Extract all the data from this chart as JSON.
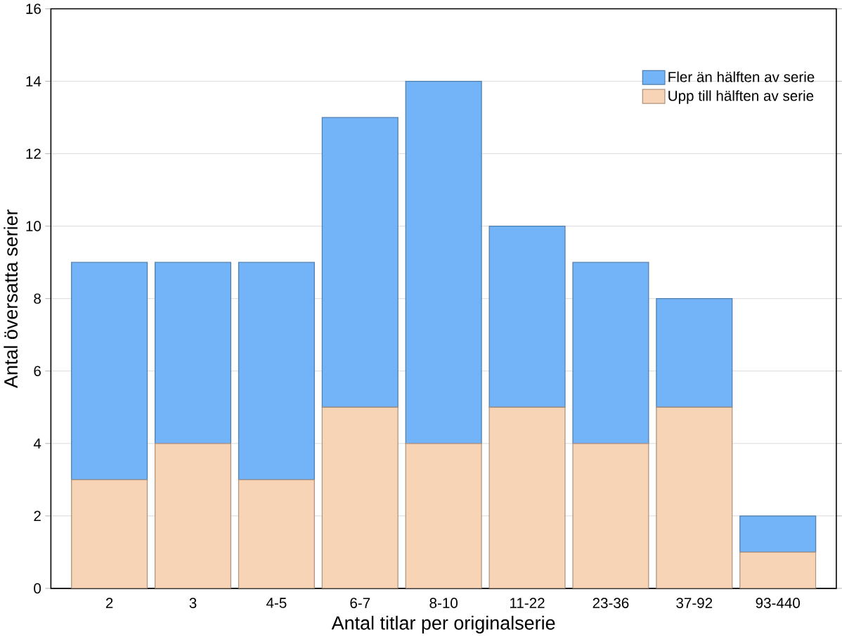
{
  "chart_data": {
    "type": "bar",
    "stacked": true,
    "xlabel": "Antal titlar per originalserie",
    "ylabel": "Antal översatta serier",
    "categories": [
      "2",
      "3",
      "4-5",
      "6-7",
      "8-10",
      "11-22",
      "23-36",
      "37-92",
      "93-440"
    ],
    "series": [
      {
        "name": "Upp till hälften av serie",
        "color": "#f8d4b6",
        "values": [
          3,
          4,
          3,
          5,
          4,
          5,
          4,
          5,
          1
        ]
      },
      {
        "name": "Fler än hälften av serie",
        "color": "#72b4f7",
        "values": [
          6,
          5,
          6,
          8,
          10,
          5,
          5,
          3,
          1
        ]
      }
    ],
    "ylim": [
      0,
      16
    ],
    "yticks": [
      0,
      2,
      4,
      6,
      8,
      10,
      12,
      14,
      16
    ],
    "grid": "y",
    "legend": "top right"
  }
}
